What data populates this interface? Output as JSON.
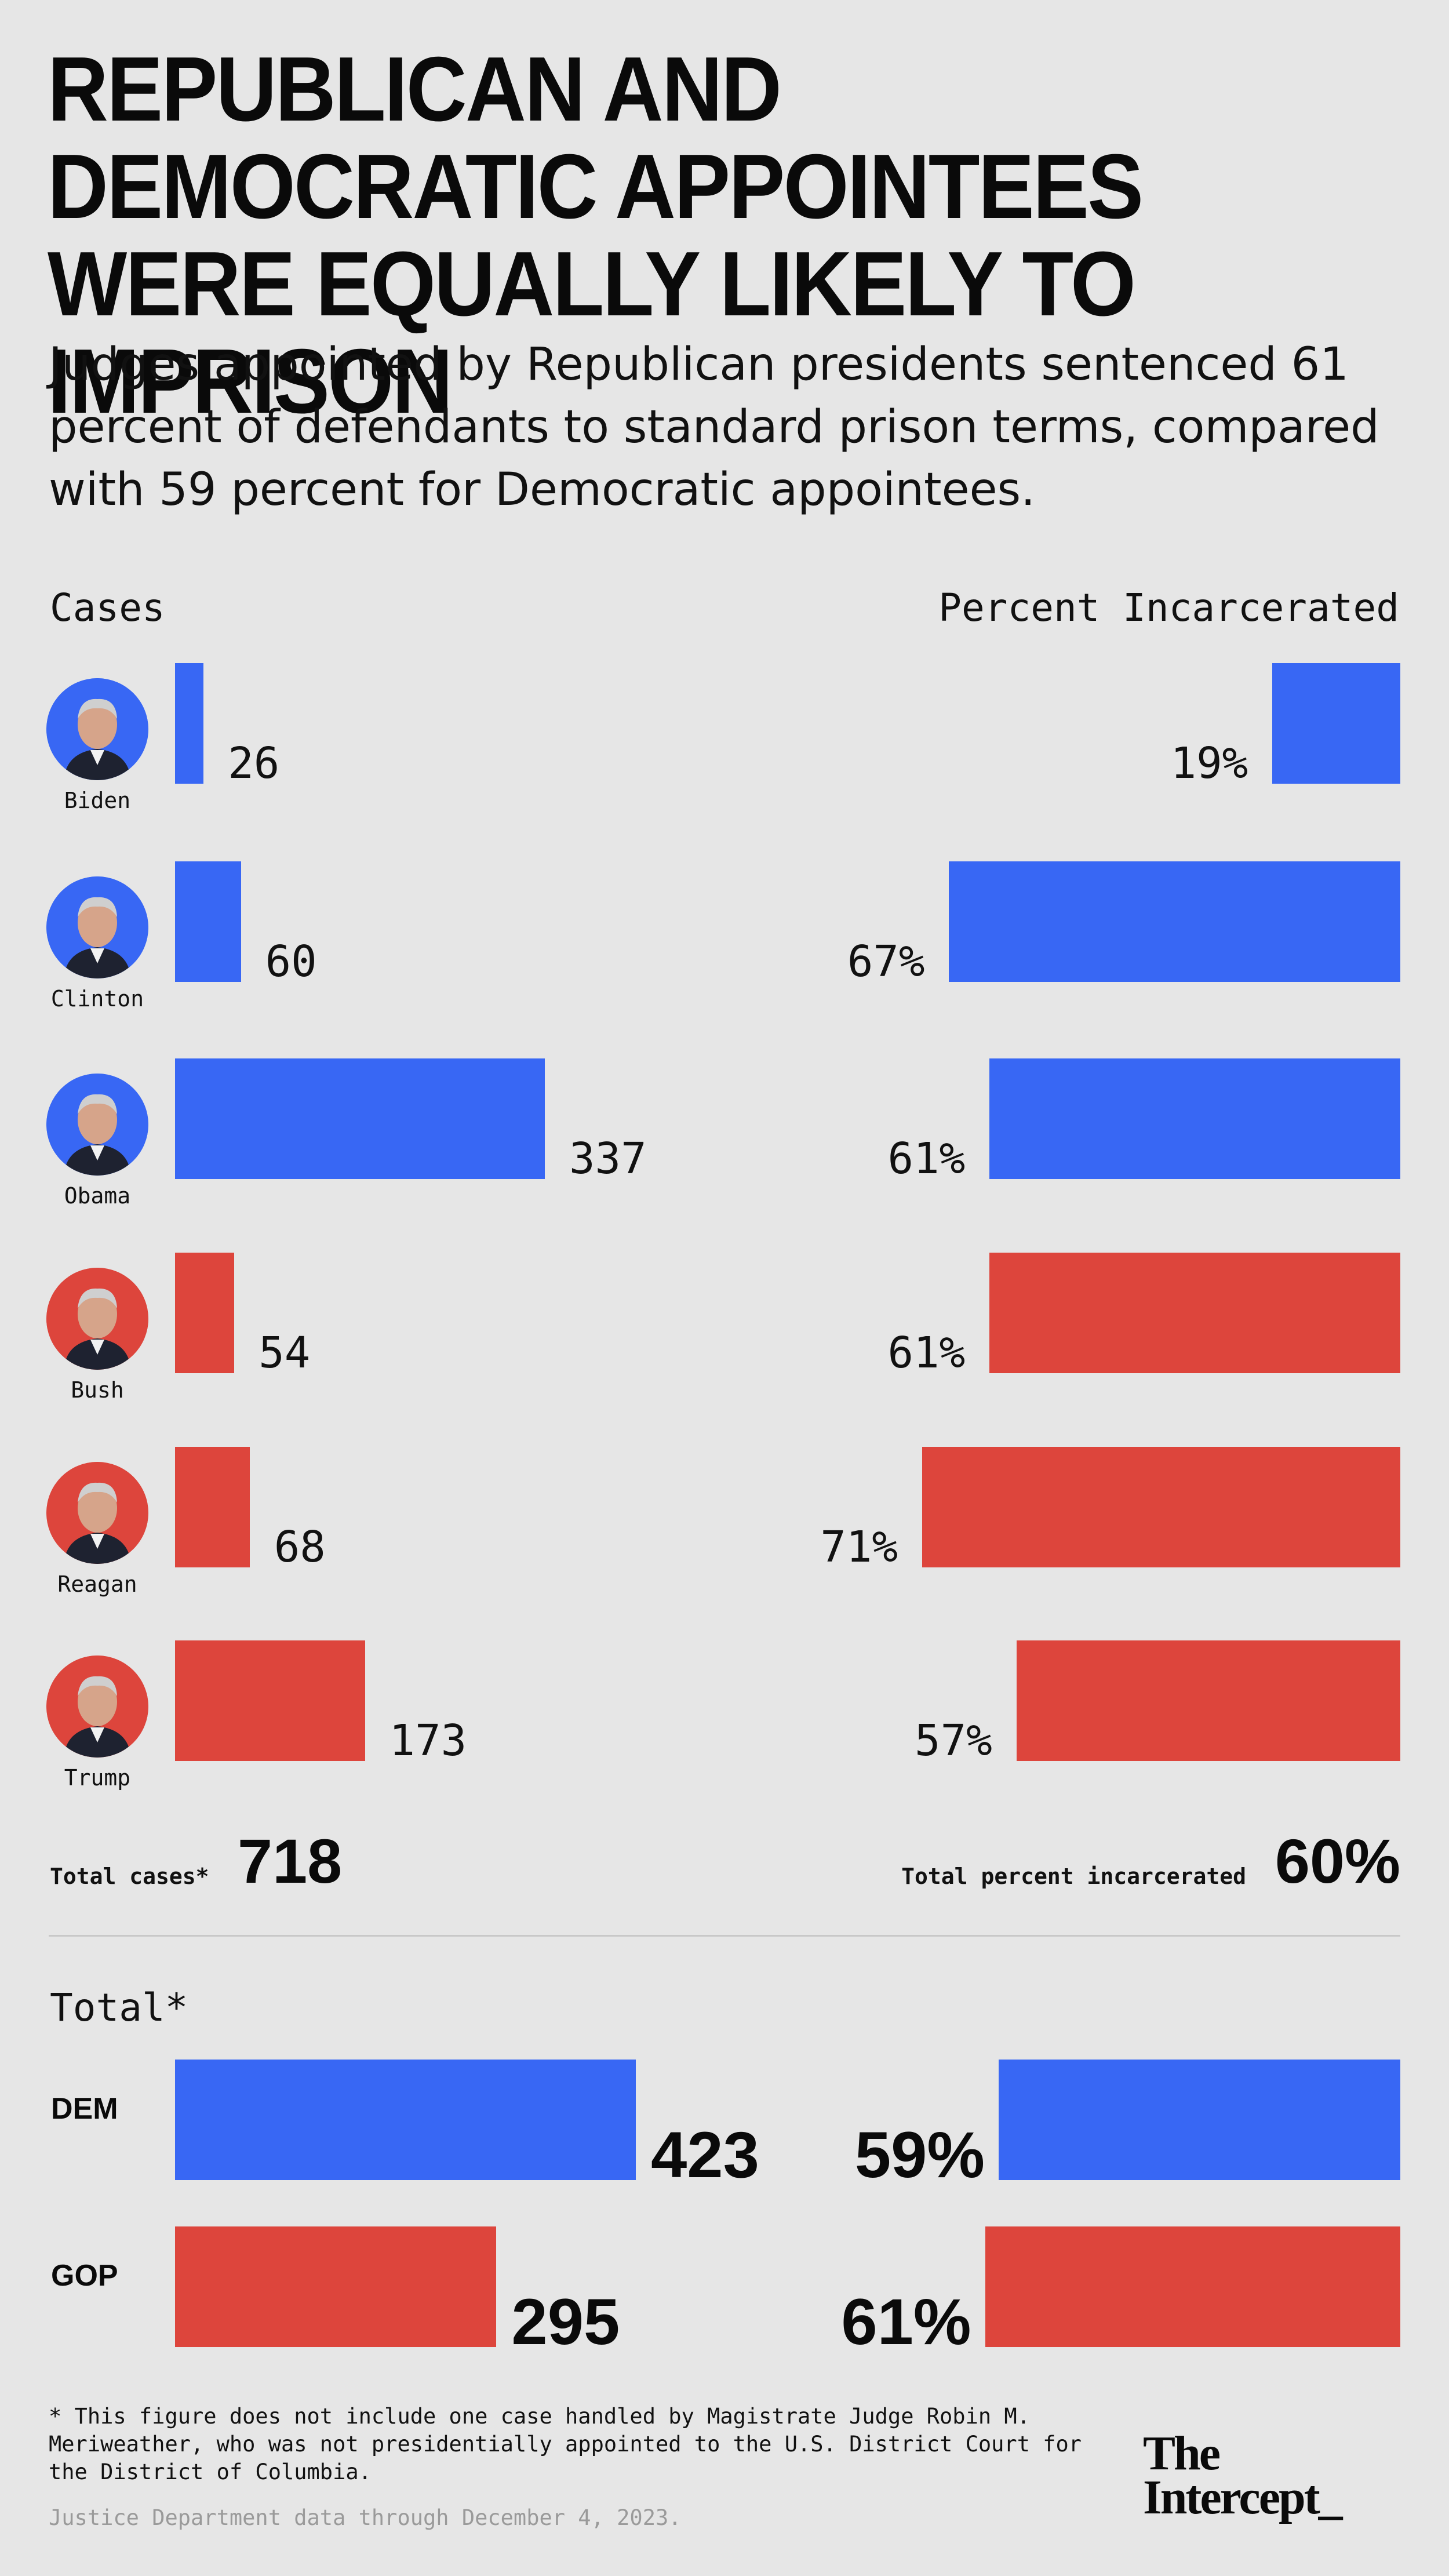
{
  "title": "REPUBLICAN AND DEMOCRATIC APPOINTEES WERE EQUALLY LIKELY TO IMPRISON",
  "subtitle": "Judges appointed by Republican presidents sentenced 61 percent of defendants to standard prison terms, compared with 59 percent for Democratic appointees.",
  "colors": {
    "dem": "#3867f4",
    "gop": "#dd453c",
    "background": "#e6e6e6"
  },
  "chart_data": [
    {
      "type": "bar",
      "title": "Cases",
      "categories": [
        "Biden",
        "Clinton",
        "Obama",
        "Bush",
        "Reagan",
        "Trump"
      ],
      "values": [
        26,
        60,
        337,
        54,
        68,
        173
      ],
      "value_labels": [
        "26",
        "60",
        "337",
        "54",
        "68",
        "173"
      ],
      "party": [
        "dem",
        "dem",
        "dem",
        "gop",
        "gop",
        "gop"
      ],
      "orientation": "horizontal",
      "total_label": "Total cases*",
      "total_value": "718"
    },
    {
      "type": "bar",
      "title": "Percent Incarcerated",
      "categories": [
        "Biden",
        "Clinton",
        "Obama",
        "Bush",
        "Reagan",
        "Trump"
      ],
      "values": [
        19,
        67,
        61,
        61,
        71,
        57
      ],
      "value_labels": [
        "19%",
        "67%",
        "61%",
        "61%",
        "71%",
        "57%"
      ],
      "party": [
        "dem",
        "dem",
        "dem",
        "gop",
        "gop",
        "gop"
      ],
      "orientation": "horizontal",
      "direction": "right-to-left",
      "total_label": "Total percent incarcerated",
      "total_value": "60%"
    },
    {
      "type": "bar",
      "title": "Total*",
      "categories": [
        "DEM",
        "GOP"
      ],
      "cases": [
        423,
        295
      ],
      "cases_labels": [
        "423",
        "295"
      ],
      "percent_incarcerated": [
        59,
        61
      ],
      "percent_labels": [
        "59%",
        "61%"
      ],
      "party": [
        "dem",
        "gop"
      ]
    }
  ],
  "footnote": "* This figure does not include one case handled by Magistrate Judge Robin M. Meriweather, who was not presidentially appointed to the U.S. District Court for the District of Columbia.",
  "source": "Justice Department data through December 4, 2023.",
  "logo": {
    "line1": "The",
    "line2": "Intercept_"
  }
}
